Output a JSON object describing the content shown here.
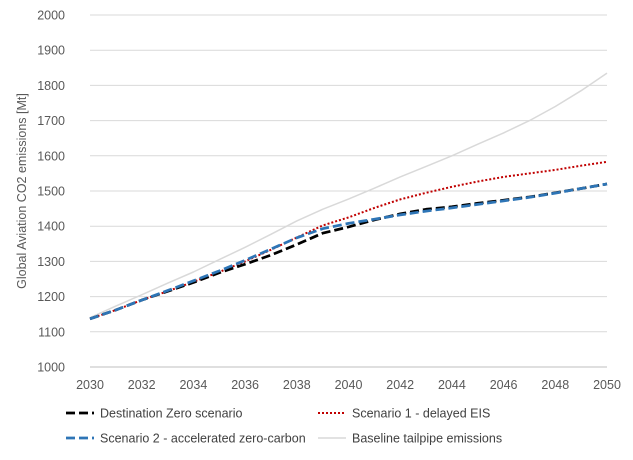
{
  "chart_data": {
    "type": "line",
    "title": "",
    "xlabel": "",
    "ylabel": "Global Aviation CO2 emissions [Mt]",
    "xlim": [
      2030,
      2050
    ],
    "ylim": [
      1000,
      2000
    ],
    "x_ticks": [
      2030,
      2032,
      2034,
      2036,
      2038,
      2040,
      2042,
      2044,
      2046,
      2048,
      2050
    ],
    "y_ticks": [
      1000,
      1100,
      1200,
      1300,
      1400,
      1500,
      1600,
      1700,
      1800,
      1900,
      2000
    ],
    "grid": "horizontal",
    "legend_position": "bottom",
    "x": [
      2030,
      2031,
      2032,
      2033,
      2034,
      2035,
      2036,
      2037,
      2038,
      2039,
      2040,
      2041,
      2042,
      2043,
      2044,
      2045,
      2046,
      2047,
      2048,
      2049,
      2050
    ],
    "series": [
      {
        "name": "Baseline tailpipe emissions",
        "color": "#d9d9d9",
        "style": "solid",
        "values": [
          1140,
          1173,
          1205,
          1238,
          1270,
          1305,
          1340,
          1377,
          1415,
          1448,
          1477,
          1508,
          1540,
          1570,
          1600,
          1633,
          1665,
          1700,
          1740,
          1785,
          1835
        ]
      },
      {
        "name": "Scenario 1 - delayed EIS",
        "color": "#c00000",
        "style": "dotted",
        "values": [
          1137,
          1162,
          1190,
          1215,
          1242,
          1270,
          1300,
          1333,
          1368,
          1402,
          1425,
          1452,
          1476,
          1495,
          1512,
          1527,
          1540,
          1550,
          1560,
          1572,
          1583
        ]
      },
      {
        "name": "Destination Zero scenario",
        "color": "#000000",
        "style": "dashed",
        "values": [
          1137,
          1162,
          1190,
          1215,
          1240,
          1268,
          1292,
          1318,
          1348,
          1380,
          1398,
          1418,
          1435,
          1448,
          1455,
          1465,
          1474,
          1483,
          1495,
          1507,
          1520
        ]
      },
      {
        "name": "Scenario 2 - accelerated zero-carbon",
        "color": "#2e75b6",
        "style": "dashed",
        "values": [
          1137,
          1162,
          1190,
          1217,
          1245,
          1273,
          1303,
          1335,
          1367,
          1393,
          1408,
          1420,
          1432,
          1443,
          1452,
          1462,
          1472,
          1482,
          1494,
          1507,
          1520
        ]
      }
    ],
    "legend_order": [
      "Destination Zero scenario",
      "Scenario 1 - delayed EIS",
      "Scenario 2 - accelerated zero-carbon",
      "Baseline tailpipe emissions"
    ]
  }
}
